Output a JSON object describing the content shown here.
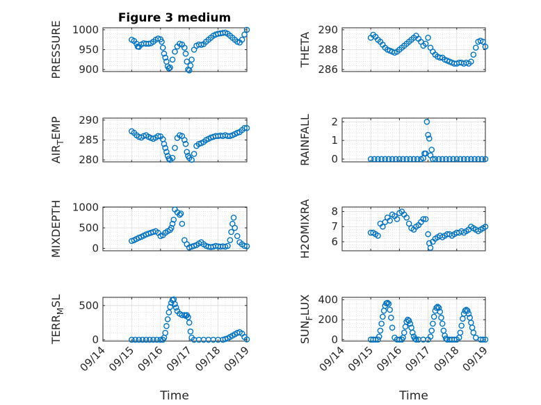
{
  "figure_title": "Figure 3 medium",
  "x_axis_label": "Time",
  "date_ticks": [
    "09/14",
    "09/15",
    "09/16",
    "09/17",
    "09/18",
    "09/19"
  ],
  "marker_color": "#0072BD",
  "chart_data": [
    {
      "type": "scatter",
      "ylabel": "PRESSURE",
      "ylim": [
        895,
        1005
      ],
      "yticks": [
        900,
        950,
        1000
      ],
      "grid": true,
      "minor_grid": true,
      "xlim": [
        "09/14",
        "09/19"
      ],
      "x": [
        "09/15 00:00",
        "09/15 02:00",
        "09/15 04:00",
        "09/15 05:00",
        "09/15 06:00",
        "09/15 08:00",
        "09/15 10:00",
        "09/15 12:00",
        "09/15 14:00",
        "09/15 16:00",
        "09/15 18:00",
        "09/15 20:00",
        "09/15 22:00",
        "09/16 00:00",
        "09/16 01:00",
        "09/16 02:00",
        "09/16 03:00",
        "09/16 04:00",
        "09/16 05:00",
        "09/16 06:00",
        "09/16 07:00",
        "09/16 08:00",
        "09/16 10:00",
        "09/16 12:00",
        "09/16 14:00",
        "09/16 16:00",
        "09/16 18:00",
        "09/16 20:00",
        "09/16 21:00",
        "09/16 22:00",
        "09/16 23:00",
        "09/17 00:00",
        "09/17 01:00",
        "09/17 02:00",
        "09/17 04:00",
        "09/17 06:00",
        "09/17 08:00",
        "09/17 10:00",
        "09/17 12:00",
        "09/17 14:00",
        "09/17 16:00",
        "09/17 18:00",
        "09/17 20:00",
        "09/17 22:00",
        "09/18 00:00",
        "09/18 02:00",
        "09/18 04:00",
        "09/18 06:00",
        "09/18 08:00",
        "09/18 10:00",
        "09/18 12:00",
        "09/18 14:00",
        "09/18 16:00",
        "09/18 18:00",
        "09/18 20:00",
        "09/18 22:00",
        "09/19 00:00"
      ],
      "values": [
        975,
        972,
        965,
        958,
        957,
        963,
        966,
        965,
        965,
        966,
        970,
        975,
        978,
        976,
        970,
        955,
        940,
        930,
        920,
        908,
        903,
        905,
        925,
        945,
        958,
        965,
        963,
        955,
        940,
        920,
        900,
        898,
        910,
        925,
        950,
        960,
        963,
        962,
        964,
        970,
        975,
        980,
        985,
        988,
        990,
        991,
        992,
        993,
        990,
        985,
        980,
        975,
        970,
        968,
        975,
        988,
        1000
      ]
    },
    {
      "type": "scatter",
      "ylabel": "THETA",
      "ylim": [
        285.8,
        290.2
      ],
      "yticks": [
        286,
        288,
        290
      ],
      "grid": true,
      "minor_grid": true,
      "xlim": [
        "09/14",
        "09/19"
      ],
      "x": [
        "09/15 00:00",
        "09/15 02:00",
        "09/15 04:00",
        "09/15 06:00",
        "09/15 08:00",
        "09/15 10:00",
        "09/15 12:00",
        "09/15 14:00",
        "09/15 16:00",
        "09/15 18:00",
        "09/15 20:00",
        "09/15 22:00",
        "09/16 00:00",
        "09/16 02:00",
        "09/16 04:00",
        "09/16 06:00",
        "09/16 08:00",
        "09/16 10:00",
        "09/16 12:00",
        "09/16 14:00",
        "09/16 16:00",
        "09/16 18:00",
        "09/16 20:00",
        "09/16 22:00",
        "09/17 00:00",
        "09/17 02:00",
        "09/17 04:00",
        "09/17 06:00",
        "09/17 08:00",
        "09/17 10:00",
        "09/17 12:00",
        "09/17 14:00",
        "09/17 16:00",
        "09/17 18:00",
        "09/17 20:00",
        "09/17 22:00",
        "09/18 00:00",
        "09/18 02:00",
        "09/18 04:00",
        "09/18 06:00",
        "09/18 08:00",
        "09/18 10:00",
        "09/18 12:00",
        "09/18 14:00",
        "09/18 16:00",
        "09/18 18:00",
        "09/18 20:00",
        "09/18 22:00",
        "09/19 00:00"
      ],
      "values": [
        289.2,
        289.5,
        289.3,
        289.0,
        288.8,
        288.5,
        288.2,
        288.0,
        287.9,
        287.8,
        287.7,
        287.8,
        288.0,
        288.2,
        288.4,
        288.6,
        288.8,
        289.0,
        289.2,
        289.4,
        289.1,
        288.8,
        288.4,
        288.6,
        289.2,
        288.2,
        287.8,
        287.5,
        287.3,
        287.2,
        287.2,
        287.0,
        286.9,
        286.8,
        286.7,
        286.6,
        286.6,
        286.7,
        286.7,
        286.6,
        286.7,
        286.6,
        286.8,
        287.5,
        288.2,
        288.8,
        288.9,
        288.8,
        288.3
      ]
    },
    {
      "type": "scatter",
      "ylabel": "AIR_TEMP",
      "ylabel_display": {
        "base": "AIR",
        "sub": "T",
        "rest": "EMP"
      },
      "ylim": [
        279.5,
        290.5
      ],
      "yticks": [
        280,
        285,
        290
      ],
      "grid": true,
      "minor_grid": true,
      "xlim": [
        "09/14",
        "09/19"
      ],
      "x": [
        "09/15 00:00",
        "09/15 02:00",
        "09/15 04:00",
        "09/15 06:00",
        "09/15 08:00",
        "09/15 10:00",
        "09/15 12:00",
        "09/15 14:00",
        "09/15 16:00",
        "09/15 18:00",
        "09/15 20:00",
        "09/15 22:00",
        "09/16 00:00",
        "09/16 02:00",
        "09/16 03:00",
        "09/16 04:00",
        "09/16 05:00",
        "09/16 06:00",
        "09/16 07:00",
        "09/16 08:00",
        "09/16 10:00",
        "09/16 12:00",
        "09/16 14:00",
        "09/16 16:00",
        "09/16 18:00",
        "09/16 20:00",
        "09/16 21:00",
        "09/16 22:00",
        "09/16 23:00",
        "09/17 00:00",
        "09/17 02:00",
        "09/17 04:00",
        "09/17 06:00",
        "09/17 08:00",
        "09/17 10:00",
        "09/17 12:00",
        "09/17 14:00",
        "09/17 16:00",
        "09/17 18:00",
        "09/17 20:00",
        "09/17 22:00",
        "09/18 00:00",
        "09/18 02:00",
        "09/18 04:00",
        "09/18 06:00",
        "09/18 08:00",
        "09/18 10:00",
        "09/18 12:00",
        "09/18 14:00",
        "09/18 16:00",
        "09/18 18:00",
        "09/18 20:00",
        "09/18 22:00",
        "09/19 00:00"
      ],
      "values": [
        287.2,
        286.8,
        286.2,
        285.8,
        285.6,
        286.0,
        286.2,
        285.8,
        285.5,
        285.3,
        285.6,
        286.0,
        285.9,
        285.2,
        284.0,
        283.0,
        282.0,
        281.0,
        280.3,
        280.0,
        280.5,
        283.0,
        285.5,
        286.2,
        286.0,
        285.0,
        284.0,
        282.0,
        281.0,
        280.5,
        280.0,
        281.5,
        283.5,
        284.0,
        284.2,
        284.5,
        285.0,
        285.3,
        285.6,
        285.8,
        286.0,
        286.0,
        286.1,
        286.0,
        286.2,
        286.0,
        286.0,
        286.2,
        286.5,
        286.8,
        287.0,
        287.5,
        288.0,
        288.0
      ]
    },
    {
      "type": "scatter",
      "ylabel": "RAINFALL",
      "ylim": [
        -0.15,
        2.2
      ],
      "yticks": [
        0,
        1,
        2
      ],
      "grid": true,
      "minor_grid": true,
      "xlim": [
        "09/14",
        "09/19"
      ],
      "x": [
        "09/15 00:00",
        "09/15 03:00",
        "09/15 06:00",
        "09/15 09:00",
        "09/15 12:00",
        "09/15 15:00",
        "09/15 18:00",
        "09/15 21:00",
        "09/16 00:00",
        "09/16 03:00",
        "09/16 06:00",
        "09/16 09:00",
        "09/16 12:00",
        "09/16 15:00",
        "09/16 18:00",
        "09/16 20:00",
        "09/16 21:00",
        "09/16 22:00",
        "09/16 23:00",
        "09/17 00:00",
        "09/17 01:00",
        "09/17 02:00",
        "09/17 03:00",
        "09/17 04:00",
        "09/17 06:00",
        "09/17 09:00",
        "09/17 12:00",
        "09/17 15:00",
        "09/17 18:00",
        "09/17 21:00",
        "09/18 00:00",
        "09/18 03:00",
        "09/18 06:00",
        "09/18 09:00",
        "09/18 12:00",
        "09/18 15:00",
        "09/18 18:00",
        "09/18 21:00",
        "09/19 00:00"
      ],
      "values": [
        0,
        0,
        0,
        0,
        0,
        0,
        0,
        0,
        0,
        0,
        0,
        0,
        0,
        0,
        0,
        0.05,
        0.3,
        0.3,
        2.0,
        1.3,
        1.1,
        0.2,
        0.5,
        0,
        0,
        0,
        0,
        0,
        0,
        0,
        0,
        0,
        0,
        0,
        0,
        0,
        0,
        0,
        0
      ]
    },
    {
      "type": "scatter",
      "ylabel": "MIXDEPTH",
      "ylim": [
        -60,
        1010
      ],
      "yticks": [
        0,
        500,
        1000
      ],
      "grid": true,
      "minor_grid": true,
      "xlim": [
        "09/14",
        "09/19"
      ],
      "x": [
        "09/15 00:00",
        "09/15 02:00",
        "09/15 04:00",
        "09/15 06:00",
        "09/15 08:00",
        "09/15 10:00",
        "09/15 12:00",
        "09/15 14:00",
        "09/15 16:00",
        "09/15 18:00",
        "09/15 20:00",
        "09/15 22:00",
        "09/16 00:00",
        "09/16 02:00",
        "09/16 04:00",
        "09/16 06:00",
        "09/16 08:00",
        "09/16 09:00",
        "09/16 10:00",
        "09/16 11:00",
        "09/16 12:00",
        "09/16 14:00",
        "09/16 16:00",
        "09/16 17:00",
        "09/16 18:00",
        "09/16 20:00",
        "09/16 22:00",
        "09/17 00:00",
        "09/17 02:00",
        "09/17 04:00",
        "09/17 06:00",
        "09/17 08:00",
        "09/17 10:00",
        "09/17 12:00",
        "09/17 14:00",
        "09/17 16:00",
        "09/17 18:00",
        "09/17 20:00",
        "09/17 22:00",
        "09/18 00:00",
        "09/18 02:00",
        "09/18 04:00",
        "09/18 06:00",
        "09/18 08:00",
        "09/18 10:00",
        "09/18 11:00",
        "09/18 12:00",
        "09/18 13:00",
        "09/18 14:00",
        "09/18 16:00",
        "09/18 18:00",
        "09/18 20:00",
        "09/18 22:00",
        "09/19 00:00"
      ],
      "values": [
        180,
        200,
        230,
        260,
        280,
        310,
        340,
        360,
        380,
        400,
        420,
        380,
        300,
        320,
        380,
        420,
        450,
        500,
        600,
        700,
        950,
        880,
        820,
        850,
        600,
        200,
        100,
        20,
        40,
        60,
        80,
        120,
        150,
        100,
        60,
        40,
        30,
        40,
        60,
        50,
        40,
        50,
        40,
        60,
        200,
        400,
        600,
        750,
        500,
        300,
        150,
        100,
        60,
        50
      ]
    },
    {
      "type": "scatter",
      "ylabel": "H2OMIXRA",
      "ylim": [
        5.4,
        8.3
      ],
      "yticks": [
        6,
        7,
        8
      ],
      "grid": true,
      "minor_grid": true,
      "xlim": [
        "09/14",
        "09/19"
      ],
      "x": [
        "09/15 00:00",
        "09/15 02:00",
        "09/15 04:00",
        "09/15 06:00",
        "09/15 08:00",
        "09/15 10:00",
        "09/15 12:00",
        "09/15 14:00",
        "09/15 16:00",
        "09/15 18:00",
        "09/15 20:00",
        "09/15 22:00",
        "09/16 00:00",
        "09/16 02:00",
        "09/16 04:00",
        "09/16 06:00",
        "09/16 08:00",
        "09/16 10:00",
        "09/16 12:00",
        "09/16 14:00",
        "09/16 16:00",
        "09/16 18:00",
        "09/16 20:00",
        "09/16 22:00",
        "09/17 00:00",
        "09/17 01:00",
        "09/17 02:00",
        "09/17 04:00",
        "09/17 06:00",
        "09/17 08:00",
        "09/17 10:00",
        "09/17 12:00",
        "09/17 14:00",
        "09/17 16:00",
        "09/17 18:00",
        "09/17 20:00",
        "09/17 22:00",
        "09/18 00:00",
        "09/18 02:00",
        "09/18 04:00",
        "09/18 06:00",
        "09/18 08:00",
        "09/18 10:00",
        "09/18 12:00",
        "09/18 14:00",
        "09/18 16:00",
        "09/18 18:00",
        "09/18 20:00",
        "09/18 22:00",
        "09/19 00:00"
      ],
      "values": [
        6.6,
        6.6,
        6.5,
        6.4,
        7.2,
        7.0,
        7.3,
        7.6,
        7.4,
        7.8,
        7.7,
        7.5,
        7.9,
        8.0,
        7.8,
        7.6,
        7.2,
        6.9,
        6.8,
        7.0,
        7.1,
        7.3,
        7.5,
        7.5,
        6.5,
        5.9,
        5.6,
        6.0,
        6.2,
        6.3,
        6.4,
        6.3,
        6.4,
        6.5,
        6.5,
        6.4,
        6.5,
        6.6,
        6.6,
        6.7,
        6.6,
        6.7,
        6.8,
        7.0,
        6.9,
        6.8,
        6.7,
        6.8,
        6.9,
        7.0
      ]
    },
    {
      "type": "scatter",
      "ylabel": "TERR_MSL",
      "ylabel_display": {
        "base": "TERR",
        "sub": "M",
        "rest": "SL"
      },
      "ylim": [
        -20,
        620
      ],
      "yticks": [
        0,
        500
      ],
      "grid": true,
      "minor_grid": true,
      "xlim": [
        "09/14",
        "09/19"
      ],
      "x": [
        "09/15 00:00",
        "09/15 03:00",
        "09/15 06:00",
        "09/15 09:00",
        "09/15 12:00",
        "09/15 15:00",
        "09/15 18:00",
        "09/15 21:00",
        "09/16 00:00",
        "09/16 02:00",
        "09/16 03:00",
        "09/16 04:00",
        "09/16 05:00",
        "09/16 06:00",
        "09/16 07:00",
        "09/16 08:00",
        "09/16 09:00",
        "09/16 10:00",
        "09/16 11:00",
        "09/16 12:00",
        "09/16 13:00",
        "09/16 14:00",
        "09/16 16:00",
        "09/16 18:00",
        "09/16 20:00",
        "09/16 21:00",
        "09/16 22:00",
        "09/16 23:00",
        "09/17 00:00",
        "09/17 01:00",
        "09/17 02:00",
        "09/17 04:00",
        "09/17 08:00",
        "09/17 12:00",
        "09/17 16:00",
        "09/17 20:00",
        "09/18 00:00",
        "09/18 04:00",
        "09/18 06:00",
        "09/18 08:00",
        "09/18 10:00",
        "09/18 12:00",
        "09/18 14:00",
        "09/18 16:00",
        "09/18 18:00",
        "09/18 20:00",
        "09/18 22:00",
        "09/19 00:00"
      ],
      "values": [
        0,
        0,
        0,
        0,
        0,
        0,
        0,
        0,
        0,
        0,
        30,
        100,
        200,
        300,
        400,
        480,
        540,
        580,
        590,
        520,
        470,
        420,
        380,
        360,
        360,
        350,
        360,
        330,
        250,
        120,
        30,
        0,
        0,
        0,
        0,
        0,
        0,
        0,
        10,
        20,
        40,
        60,
        80,
        100,
        110,
        90,
        40,
        5
      ]
    },
    {
      "type": "scatter",
      "ylabel": "SUN_FLUX",
      "ylabel_display": {
        "base": "SUN",
        "sub": "F",
        "rest": "LUX"
      },
      "ylim": [
        -15,
        425
      ],
      "yticks": [
        0,
        200,
        400
      ],
      "grid": true,
      "minor_grid": true,
      "xlim": [
        "09/14",
        "09/19"
      ],
      "x": [
        "09/15 00:00",
        "09/15 02:00",
        "09/15 04:00",
        "09/15 06:00",
        "09/15 07:00",
        "09/15 08:00",
        "09/15 09:00",
        "09/15 10:00",
        "09/15 11:00",
        "09/15 12:00",
        "09/15 13:00",
        "09/15 14:00",
        "09/15 15:00",
        "09/15 16:00",
        "09/15 17:00",
        "09/15 18:00",
        "09/15 20:00",
        "09/15 22:00",
        "09/16 00:00",
        "09/16 02:00",
        "09/16 03:00",
        "09/16 04:00",
        "09/16 05:00",
        "09/16 06:00",
        "09/16 07:00",
        "09/16 08:00",
        "09/16 09:00",
        "09/16 10:00",
        "09/16 11:00",
        "09/16 12:00",
        "09/16 13:00",
        "09/16 14:00",
        "09/16 16:00",
        "09/16 20:00",
        "09/17 00:00",
        "09/17 02:00",
        "09/17 03:00",
        "09/17 04:00",
        "09/17 05:00",
        "09/17 06:00",
        "09/17 07:00",
        "09/17 08:00",
        "09/17 09:00",
        "09/17 10:00",
        "09/17 11:00",
        "09/17 12:00",
        "09/17 13:00",
        "09/17 14:00",
        "09/17 15:00",
        "09/17 16:00",
        "09/17 18:00",
        "09/17 20:00",
        "09/17 22:00",
        "09/18 00:00",
        "09/18 02:00",
        "09/18 03:00",
        "09/18 04:00",
        "09/18 05:00",
        "09/18 06:00",
        "09/18 07:00",
        "09/18 08:00",
        "09/18 09:00",
        "09/18 10:00",
        "09/18 11:00",
        "09/18 12:00",
        "09/18 13:00",
        "09/18 14:00",
        "09/18 16:00",
        "09/18 20:00",
        "09/18 22:00",
        "09/19 00:00"
      ],
      "values": [
        0,
        0,
        0,
        0,
        30,
        90,
        160,
        230,
        290,
        340,
        365,
        370,
        360,
        300,
        220,
        120,
        20,
        0,
        0,
        0,
        20,
        70,
        130,
        180,
        200,
        190,
        160,
        120,
        70,
        30,
        10,
        0,
        0,
        0,
        0,
        30,
        90,
        160,
        230,
        290,
        320,
        330,
        320,
        280,
        220,
        160,
        90,
        40,
        10,
        0,
        0,
        0,
        0,
        0,
        20,
        70,
        140,
        210,
        260,
        290,
        300,
        290,
        260,
        220,
        170,
        120,
        70,
        20,
        0,
        0,
        0
      ]
    }
  ]
}
